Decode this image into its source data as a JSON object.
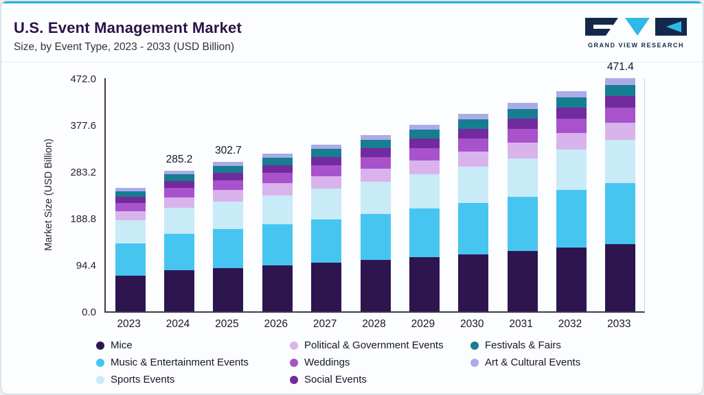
{
  "header": {
    "title": "U.S. Event Management Market",
    "subtitle": "Size, by Event Type, 2023 - 2033 (USD Billion)",
    "logo": {
      "text": "GRAND VIEW RESEARCH",
      "navy": "#13294b",
      "cyan": "#2fb8e8"
    },
    "accent_color": "#2bb0e6"
  },
  "chart_data": {
    "type": "bar",
    "stacked": true,
    "title": "U.S. Event Management Market Size, by Event Type, 2023 - 2033 (USD Billion)",
    "xlabel": "",
    "ylabel": "Market Size (USD Billion)",
    "ylim": [
      0,
      472.0
    ],
    "y_ticks": [
      "472.0",
      "377.6",
      "283.2",
      "188.8",
      "94.4",
      "0.0"
    ],
    "grid": false,
    "legend_position": "bottom",
    "categories": [
      "2023",
      "2024",
      "2025",
      "2026",
      "2027",
      "2028",
      "2029",
      "2030",
      "2031",
      "2032",
      "2033"
    ],
    "series": [
      {
        "name": "Mice",
        "color": "#2d1650",
        "values": [
          72.6,
          82.7,
          87.8,
          92.8,
          98.0,
          103.6,
          109.6,
          115.8,
          122.4,
          129.4,
          136.7
        ]
      },
      {
        "name": "Music & Entertainment Events",
        "color": "#47c5f1",
        "values": [
          65.1,
          74.2,
          78.7,
          83.2,
          87.9,
          92.9,
          98.2,
          103.8,
          109.8,
          116.0,
          122.6
        ]
      },
      {
        "name": "Sports Events",
        "color": "#c9eaf7",
        "values": [
          46.3,
          52.8,
          56.0,
          59.2,
          62.5,
          66.1,
          69.9,
          73.9,
          78.1,
          82.6,
          87.2
        ]
      },
      {
        "name": "Political & Government Events",
        "color": "#d9b3ec",
        "values": [
          18.8,
          21.4,
          22.7,
          24.0,
          25.4,
          26.8,
          28.3,
          30.0,
          31.7,
          33.5,
          35.4
        ]
      },
      {
        "name": "Weddings",
        "color": "#a852cb",
        "values": [
          16.3,
          18.5,
          19.7,
          20.8,
          22.0,
          23.2,
          24.6,
          26.0,
          27.4,
          29.0,
          30.6
        ]
      },
      {
        "name": "Social Events",
        "color": "#722b9e",
        "values": [
          12.5,
          14.3,
          15.1,
          16.0,
          16.9,
          17.9,
          18.9,
          20.0,
          21.1,
          22.3,
          23.6
        ]
      },
      {
        "name": "Festivals & Fairs",
        "color": "#177d91",
        "values": [
          11.8,
          13.4,
          14.2,
          15.0,
          15.9,
          16.8,
          17.8,
          18.8,
          19.8,
          21.0,
          22.2
        ]
      },
      {
        "name": "Art & Cultural Events",
        "color": "#a9ace8",
        "values": [
          7.0,
          8.0,
          8.5,
          9.0,
          9.5,
          10.0,
          10.6,
          11.2,
          11.8,
          12.5,
          13.2
        ]
      }
    ],
    "total_labels": [
      {
        "category": "2024",
        "value": "285.2"
      },
      {
        "category": "2025",
        "value": "302.7"
      },
      {
        "category": "2033",
        "value": "471.4"
      }
    ]
  }
}
